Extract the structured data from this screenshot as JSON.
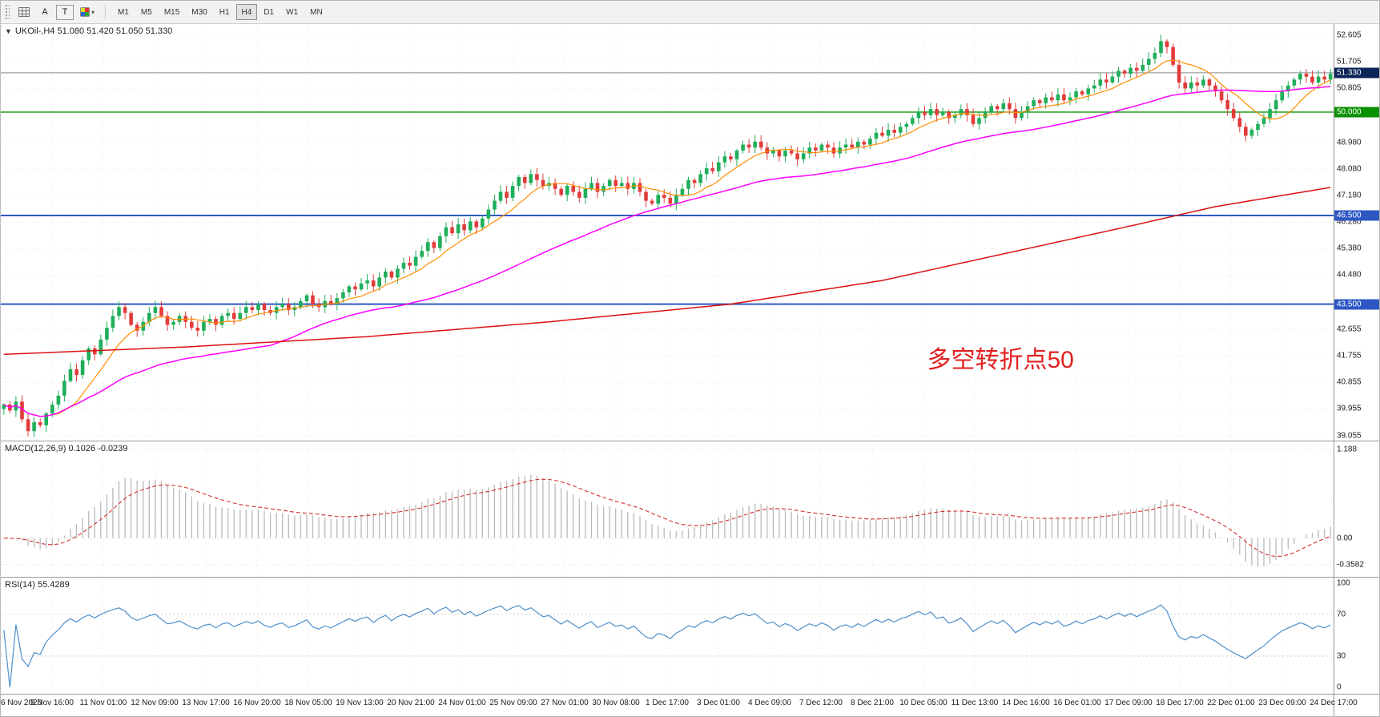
{
  "toolbar": {
    "tool_buttons": [
      {
        "label": "A"
      },
      {
        "label": "T"
      }
    ],
    "timeframes": [
      "M1",
      "M5",
      "M15",
      "M30",
      "H1",
      "H4",
      "D1",
      "W1",
      "MN"
    ],
    "active_timeframe": "H4"
  },
  "main_panel": {
    "symbol_line": "UKOil-,H4 51.080 51.420 51.050 51.330",
    "collapse_icon": "▼",
    "annotation": {
      "text": "多空转折点50",
      "color": "#e21f1f"
    },
    "price_scale": {
      "top": 52.98,
      "bottom": 38.88
    },
    "y_ticks": [
      "52.605",
      "51.705",
      "50.805",
      "48.980",
      "48.080",
      "47.180",
      "46.280",
      "45.380",
      "44.480",
      "42.655",
      "41.755",
      "40.855",
      "39.955",
      "39.055"
    ],
    "price_badges": [
      {
        "label": "51.330",
        "value": 51.33,
        "bg": "#0b2558",
        "type": "current-price"
      },
      {
        "label": "50.000",
        "value": 50.0,
        "bg": "#089000",
        "type": "green-hline"
      },
      {
        "label": "46.500",
        "value": 46.5,
        "bg": "#2e57c4",
        "type": "blue-hline"
      },
      {
        "label": "43.500",
        "value": 43.5,
        "bg": "#2e57c4",
        "type": "blue-hline"
      }
    ],
    "hlines": [
      {
        "value": 50.0,
        "color": "#089000",
        "width": 1.4
      },
      {
        "value": 46.5,
        "color": "#2e57c4",
        "width": 2
      },
      {
        "value": 43.5,
        "color": "#2e57c4",
        "width": 2
      }
    ],
    "current_price_line": {
      "value": 51.33,
      "color": "#8a8a8a"
    }
  },
  "macd_panel": {
    "label": "MACD(12,26,9) 0.1026 -0.0239",
    "scale": {
      "top": 1.3,
      "bottom": -0.52
    },
    "ticks": [
      {
        "label": "1.188",
        "value": 1.188
      },
      {
        "label": "0.00",
        "value": 0
      },
      {
        "label": "-0.3582",
        "value": -0.3582
      }
    ],
    "histogram_color": "#b9b9b9",
    "signal_color": "#d32f2f"
  },
  "rsi_panel": {
    "label": "RSI(14) 55.4289",
    "scale": {
      "top": 105,
      "bottom": -6
    },
    "ticks": [
      {
        "label": "100",
        "value": 100
      },
      {
        "label": "70",
        "value": 70
      },
      {
        "label": "30",
        "value": 30
      },
      {
        "label": "0",
        "value": 0
      }
    ],
    "levels": [
      70,
      30
    ],
    "line_color": "#4f8fcc"
  },
  "time_axis": [
    "6 Nov 2020",
    "9 Nov 16:00",
    "11 Nov 01:00",
    "12 Nov 09:00",
    "13 Nov 17:00",
    "16 Nov 20:00",
    "18 Nov 05:00",
    "19 Nov 13:00",
    "20 Nov 21:00",
    "24 Nov 01:00",
    "25 Nov 09:00",
    "27 Nov 01:00",
    "30 Nov 08:00",
    "1 Dec 17:00",
    "3 Dec 01:00",
    "4 Dec 09:00",
    "7 Dec 12:00",
    "8 Dec 21:00",
    "10 Dec 05:00",
    "11 Dec 13:00",
    "14 Dec 16:00",
    "16 Dec 01:00",
    "17 Dec 09:00",
    "18 Dec 17:00",
    "22 Dec 01:00",
    "23 Dec 09:00",
    "24 Dec 17:00"
  ],
  "chart_data": {
    "type": "candlestick",
    "symbol": "UKOil-",
    "timeframe": "H4",
    "last_bar": {
      "open": 51.08,
      "high": 51.42,
      "low": 51.05,
      "close": 51.33
    },
    "ylim": [
      38.88,
      52.98
    ],
    "hline_levels": [
      50.0,
      46.5,
      43.5
    ],
    "annotation": "多空转折点50",
    "indicators": {
      "macd": {
        "fast": 12,
        "slow": 26,
        "signal": 9,
        "value": 0.1026,
        "signal_value": -0.0239
      },
      "rsi": {
        "period": 14,
        "value": 55.4289
      }
    },
    "closes": [
      40.1,
      39.9,
      40.2,
      39.6,
      39.2,
      39.5,
      39.4,
      39.8,
      40.1,
      40.4,
      40.9,
      41.3,
      41.1,
      41.6,
      42.0,
      41.8,
      42.3,
      42.7,
      43.1,
      43.4,
      43.2,
      42.8,
      42.6,
      42.9,
      43.2,
      43.4,
      43.1,
      42.8,
      42.9,
      43.1,
      42.9,
      42.7,
      42.6,
      42.9,
      43.0,
      42.8,
      43.1,
      43.2,
      43.0,
      43.2,
      43.4,
      43.3,
      43.5,
      43.3,
      43.2,
      43.4,
      43.5,
      43.3,
      43.4,
      43.6,
      43.8,
      43.5,
      43.4,
      43.6,
      43.5,
      43.7,
      43.9,
      44.1,
      44.0,
      44.2,
      44.3,
      44.1,
      44.4,
      44.6,
      44.4,
      44.7,
      44.9,
      44.8,
      45.1,
      45.3,
      45.6,
      45.4,
      45.8,
      46.1,
      45.9,
      46.2,
      46.0,
      46.3,
      46.1,
      46.4,
      46.7,
      47.0,
      47.3,
      47.1,
      47.5,
      47.8,
      47.6,
      47.9,
      47.7,
      47.5,
      47.6,
      47.4,
      47.2,
      47.5,
      47.3,
      47.1,
      47.4,
      47.6,
      47.3,
      47.5,
      47.7,
      47.5,
      47.6,
      47.4,
      47.6,
      47.3,
      47.0,
      46.9,
      47.2,
      47.1,
      46.9,
      47.2,
      47.4,
      47.7,
      47.6,
      47.9,
      48.1,
      48.0,
      48.3,
      48.5,
      48.4,
      48.7,
      48.9,
      48.8,
      49.0,
      48.8,
      48.6,
      48.7,
      48.5,
      48.7,
      48.6,
      48.4,
      48.6,
      48.8,
      48.7,
      48.9,
      48.8,
      48.6,
      48.8,
      48.9,
      48.8,
      49.0,
      48.9,
      49.1,
      49.3,
      49.2,
      49.4,
      49.3,
      49.5,
      49.6,
      49.8,
      50.0,
      49.9,
      50.1,
      49.9,
      50.0,
      49.8,
      49.9,
      50.1,
      49.9,
      49.6,
      49.8,
      50.0,
      50.2,
      50.1,
      50.3,
      50.1,
      49.8,
      50.0,
      50.2,
      50.4,
      50.3,
      50.5,
      50.4,
      50.6,
      50.4,
      50.5,
      50.7,
      50.6,
      50.8,
      50.9,
      51.1,
      51.0,
      51.2,
      51.4,
      51.3,
      51.5,
      51.4,
      51.6,
      51.8,
      52.0,
      52.4,
      52.2,
      51.6,
      51.0,
      50.8,
      51.0,
      50.9,
      51.1,
      50.9,
      50.7,
      50.4,
      50.1,
      49.8,
      49.5,
      49.2,
      49.4,
      49.6,
      49.8,
      50.1,
      50.4,
      50.7,
      50.9,
      51.1,
      51.3,
      51.2,
      51.0,
      51.2,
      51.1,
      51.3
    ],
    "ma_fast_period": 9,
    "ma_mid_period": 45,
    "ma_slow_waypoints": [
      [
        0,
        41.8
      ],
      [
        30,
        42.05
      ],
      [
        60,
        42.4
      ],
      [
        90,
        42.9
      ],
      [
        120,
        43.5
      ],
      [
        145,
        44.3
      ],
      [
        165,
        45.2
      ],
      [
        185,
        46.1
      ],
      [
        200,
        46.8
      ],
      [
        219,
        47.45
      ]
    ],
    "colors": {
      "up": "#1fae5a",
      "down": "#e23b3b",
      "ma_fast": "#ff8c00",
      "ma_mid": "#ff00ff",
      "ma_slow": "#dd1111"
    }
  }
}
